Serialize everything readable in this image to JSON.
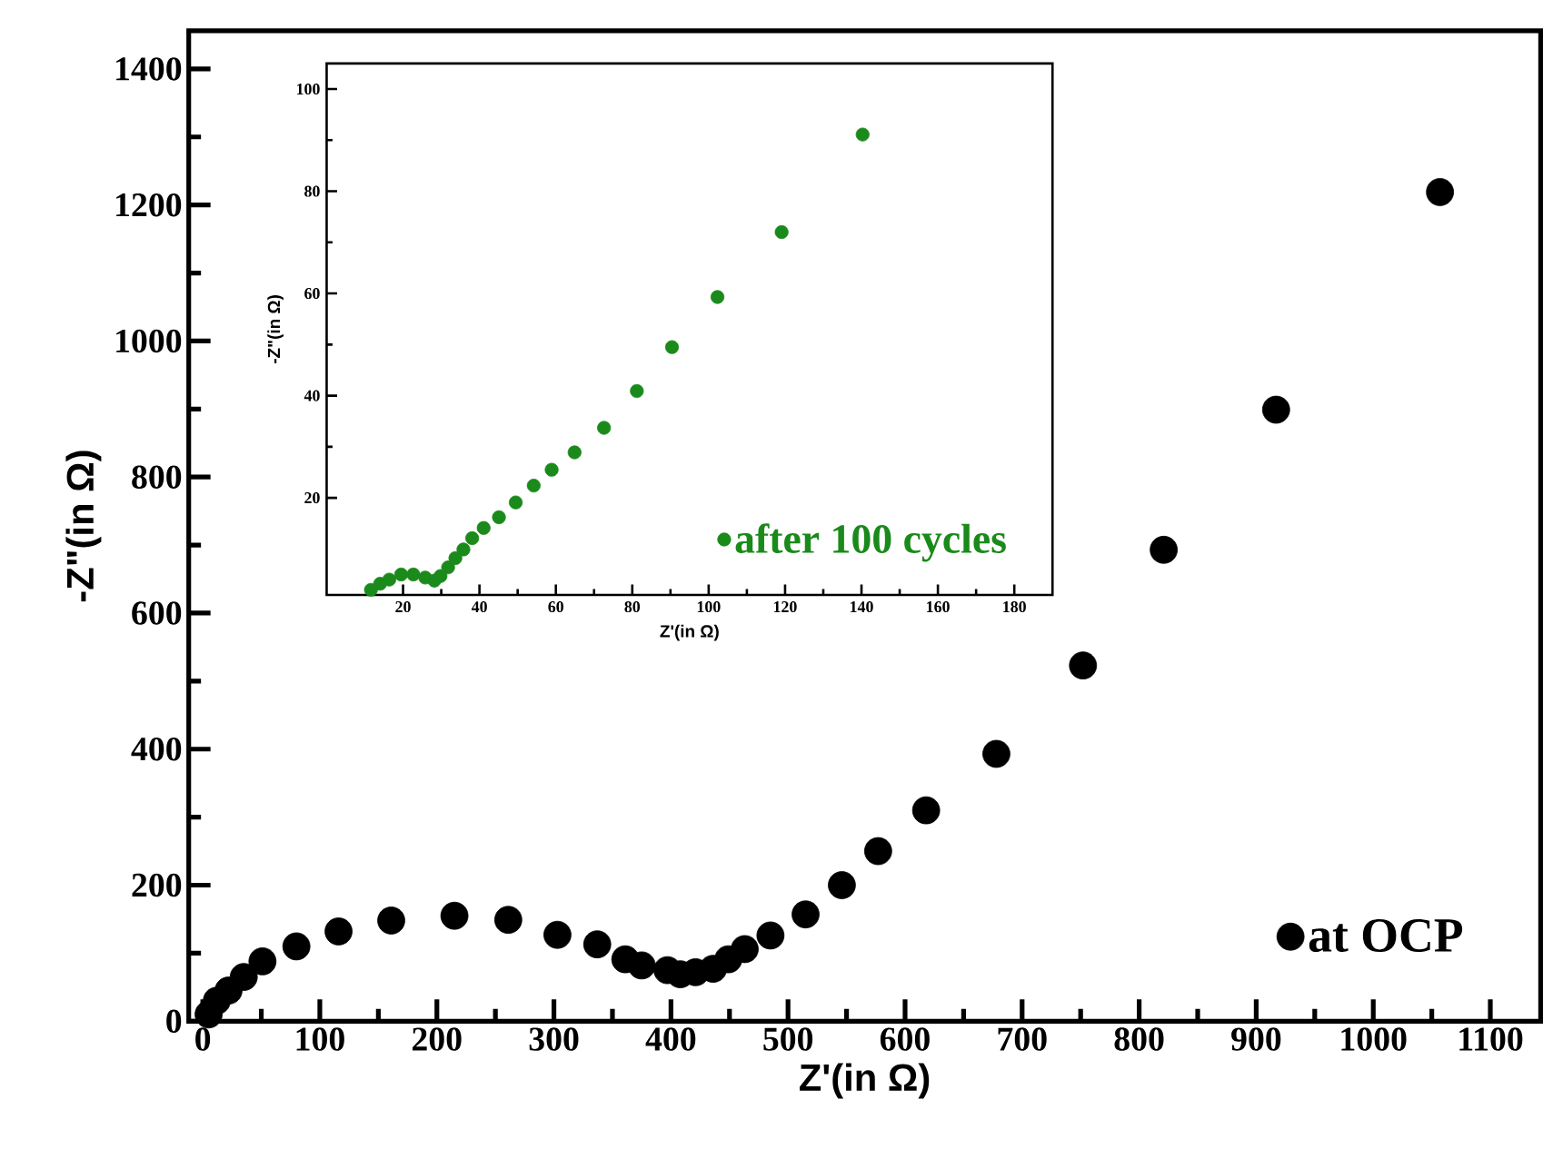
{
  "chart_data": [
    {
      "type": "scatter",
      "xlabel": "Z'(in Ω)",
      "ylabel": "-Z\"(in Ω)",
      "xlim": [
        -12,
        1143
      ],
      "ylim": [
        0,
        1456
      ],
      "xticks": [
        0,
        100,
        200,
        300,
        400,
        500,
        600,
        700,
        800,
        900,
        1000,
        1100
      ],
      "yticks": [
        0,
        200,
        400,
        600,
        800,
        1000,
        1200,
        1400
      ],
      "marker": "circle",
      "legend": "bottom right",
      "grid": false,
      "series": [
        {
          "name": "at OCP",
          "color": "#000000",
          "x": [
            5,
            12,
            22,
            35,
            51,
            80,
            116,
            161,
            215,
            261,
            303,
            337,
            361,
            375,
            397,
            408,
            421,
            436,
            449,
            463,
            485,
            515,
            546,
            577,
            618,
            678,
            752,
            821,
            917,
            1057
          ],
          "values": [
            10,
            30,
            45,
            65,
            88,
            110,
            132,
            148,
            155,
            149,
            127,
            113,
            91,
            82,
            75,
            69,
            72,
            77,
            91,
            106,
            126,
            157,
            200,
            250,
            310,
            393,
            523,
            693,
            899,
            1219
          ]
        }
      ]
    },
    {
      "type": "scatter",
      "xlabel": "Z'(in Ω)",
      "ylabel": "-Z\"(in Ω)",
      "xlim": [
        0,
        190
      ],
      "ylim": [
        1,
        105
      ],
      "xticks": [
        20,
        40,
        60,
        80,
        100,
        120,
        140,
        160,
        180
      ],
      "yticks": [
        20,
        40,
        60,
        80,
        100
      ],
      "marker": "circle",
      "legend": "bottom right",
      "grid": false,
      "series": [
        {
          "name": "after 100 cycles",
          "color": "#1a8a1a",
          "x": [
            11.6,
            14.0,
            16.4,
            19.5,
            22.7,
            25.8,
            28.2,
            29.8,
            31.8,
            33.7,
            35.8,
            38.1,
            41.1,
            45.1,
            49.5,
            54.2,
            58.9,
            64.9,
            72.6,
            81.2,
            90.4,
            102.3,
            119.1,
            140.3
          ],
          "values": [
            2.0,
            3.2,
            4.0,
            5.0,
            5.0,
            4.4,
            3.8,
            4.7,
            6.4,
            8.2,
            9.9,
            12.1,
            14.1,
            16.2,
            19.1,
            22.4,
            25.5,
            28.9,
            33.7,
            40.9,
            49.5,
            59.3,
            72.0,
            91.1
          ]
        }
      ]
    }
  ]
}
